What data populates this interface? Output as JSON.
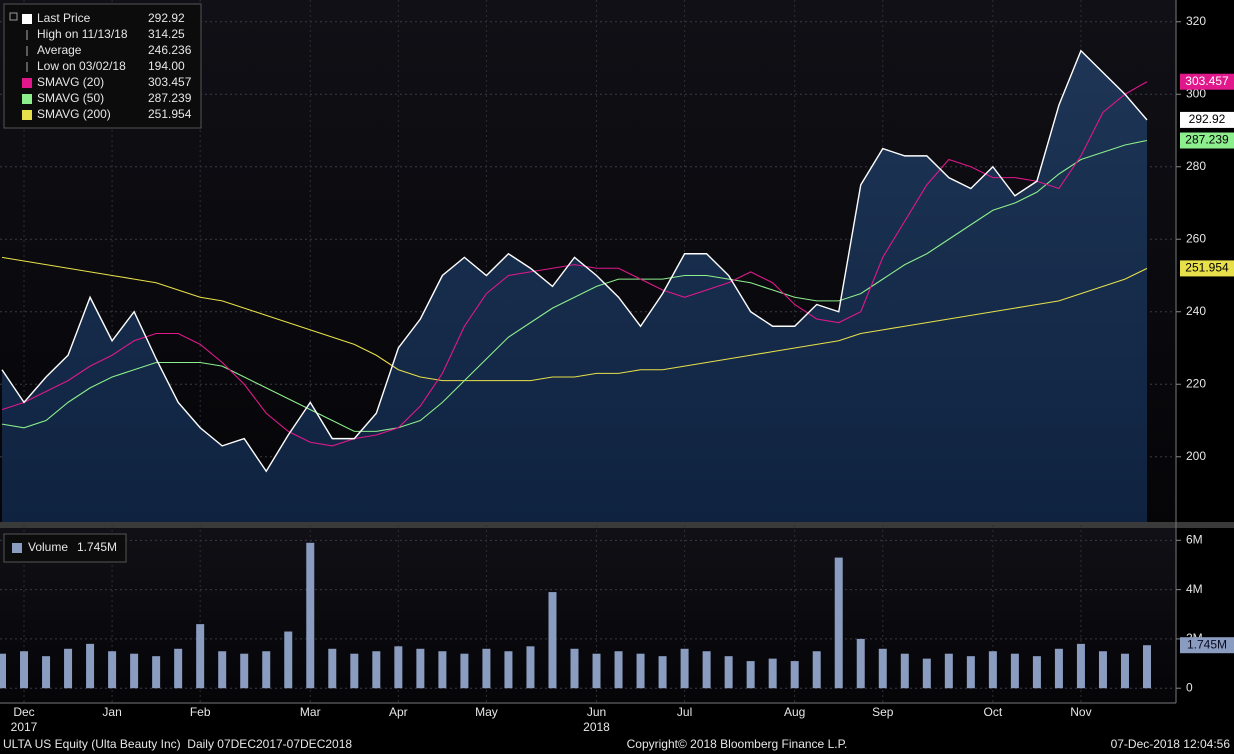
{
  "chart_data": [
    {
      "type": "line",
      "categories": [
        null,
        "Dec",
        null,
        null,
        null,
        "Jan",
        null,
        null,
        null,
        "Feb",
        null,
        null,
        null,
        null,
        "Mar",
        null,
        null,
        null,
        "Apr",
        null,
        null,
        null,
        "May",
        null,
        null,
        null,
        null,
        "Jun",
        null,
        null,
        null,
        "Jul",
        null,
        null,
        null,
        null,
        "Aug",
        null,
        null,
        null,
        "Sep",
        null,
        null,
        null,
        null,
        "Oct",
        null,
        null,
        null,
        "Nov",
        null,
        null,
        null
      ],
      "year_labels": [
        null,
        "2017",
        null,
        null,
        null,
        null,
        null,
        null,
        null,
        null,
        null,
        null,
        null,
        null,
        null,
        null,
        null,
        null,
        null,
        null,
        null,
        null,
        null,
        null,
        null,
        null,
        null,
        "2018",
        null,
        null,
        null,
        null,
        null,
        null,
        null,
        null,
        null,
        null,
        null,
        null,
        null,
        null,
        null,
        null,
        null,
        null,
        null,
        null,
        null,
        null,
        null,
        null,
        null
      ],
      "ylim": [
        182,
        326
      ],
      "yticks": [
        200,
        220,
        240,
        260,
        280,
        300,
        320
      ],
      "grid": true,
      "series": [
        {
          "name": "Last Price",
          "color": "#ffffff",
          "values": [
            224,
            215,
            222,
            228,
            244,
            232,
            240,
            227,
            215,
            208,
            203,
            205,
            196,
            206,
            215,
            205,
            205,
            212,
            230,
            238,
            250,
            255,
            250,
            256,
            252,
            247,
            255,
            250,
            244,
            236,
            245,
            256,
            256,
            250,
            240,
            236,
            236,
            242,
            240,
            275,
            285,
            283,
            283,
            277,
            274,
            280,
            272,
            276,
            297,
            312,
            306,
            300,
            292.92
          ]
        },
        {
          "name": "SMAVG (20)",
          "color": "#e0188c",
          "values": [
            213,
            215,
            218,
            221,
            225,
            228,
            232,
            234,
            234,
            231,
            226,
            220,
            212,
            207,
            204,
            203,
            205,
            206,
            208,
            214,
            223,
            236,
            245,
            250,
            251,
            252,
            253,
            252,
            252,
            249,
            246,
            244,
            246,
            248,
            251,
            248,
            242,
            238,
            237,
            240,
            255,
            265,
            275,
            282,
            280,
            277,
            277,
            276,
            274,
            283,
            295,
            300,
            303.457
          ]
        },
        {
          "name": "SMAVG (50)",
          "color": "#8cee8c",
          "values": [
            209,
            208,
            210,
            215,
            219,
            222,
            224,
            226,
            226,
            226,
            225,
            222,
            219,
            216,
            213,
            210,
            207,
            207,
            208,
            210,
            215,
            221,
            227,
            233,
            237,
            241,
            244,
            247,
            249,
            249,
            249,
            250,
            250,
            249,
            248,
            246,
            244,
            243,
            243,
            245,
            249,
            253,
            256,
            260,
            264,
            268,
            270,
            273,
            278,
            282,
            284,
            286,
            287.239
          ]
        },
        {
          "name": "SMAVG (200)",
          "color": "#e8e04a",
          "values": [
            255,
            254,
            253,
            252,
            251,
            250,
            249,
            248,
            246,
            244,
            243,
            241,
            239,
            237,
            235,
            233,
            231,
            228,
            224,
            222,
            221,
            221,
            221,
            221,
            221,
            222,
            222,
            223,
            223,
            224,
            224,
            225,
            226,
            227,
            228,
            229,
            230,
            231,
            232,
            234,
            235,
            236,
            237,
            238,
            239,
            240,
            241,
            242,
            243,
            245,
            247,
            249,
            251.954
          ]
        }
      ],
      "stats": [
        {
          "label": "High on 11/13/18",
          "value": "314.25"
        },
        {
          "label": "Average",
          "value": "246.236"
        },
        {
          "label": "Low on 03/02/18",
          "value": "194.00"
        }
      ]
    },
    {
      "type": "bar",
      "ylim": [
        -0.6,
        6.5
      ],
      "yticks": [
        0,
        {
          "value": 2,
          "label": "2M"
        },
        {
          "value": 4,
          "label": "4M"
        },
        {
          "value": 6,
          "label": "6M"
        }
      ],
      "series": [
        {
          "name": "Volume",
          "color": "#8a9cc0",
          "values": [
            1.4,
            1.5,
            1.3,
            1.6,
            1.8,
            1.5,
            1.4,
            1.3,
            1.6,
            2.6,
            1.5,
            1.4,
            1.5,
            2.3,
            5.9,
            1.6,
            1.4,
            1.5,
            1.7,
            1.6,
            1.5,
            1.4,
            1.6,
            1.5,
            1.7,
            3.9,
            1.6,
            1.4,
            1.5,
            1.4,
            1.3,
            1.6,
            1.5,
            1.3,
            1.1,
            1.2,
            1.1,
            1.5,
            5.3,
            2.0,
            1.6,
            1.4,
            1.2,
            1.4,
            1.3,
            1.5,
            1.4,
            1.3,
            1.6,
            1.8,
            1.5,
            1.4,
            1.745
          ],
          "value_labels": [
            null,
            null,
            null,
            null,
            null,
            null,
            null,
            null,
            null,
            null,
            null,
            null,
            null,
            null,
            null,
            null,
            null,
            null,
            null,
            null,
            null,
            null,
            null,
            null,
            null,
            null,
            null,
            null,
            null,
            null,
            null,
            null,
            null,
            null,
            null,
            null,
            null,
            null,
            null,
            null,
            null,
            null,
            null,
            null,
            null,
            null,
            null,
            null,
            null,
            null,
            null,
            null,
            "1.745M"
          ]
        }
      ]
    }
  ],
  "footer": {
    "left": "ULTA US Equity (Ulta Beauty Inc)  Daily 07DEC2017-07DEC2018",
    "center": "Copyright© 2018 Bloomberg Finance L.P.",
    "right": "07-Dec-2018 12:04:56"
  }
}
